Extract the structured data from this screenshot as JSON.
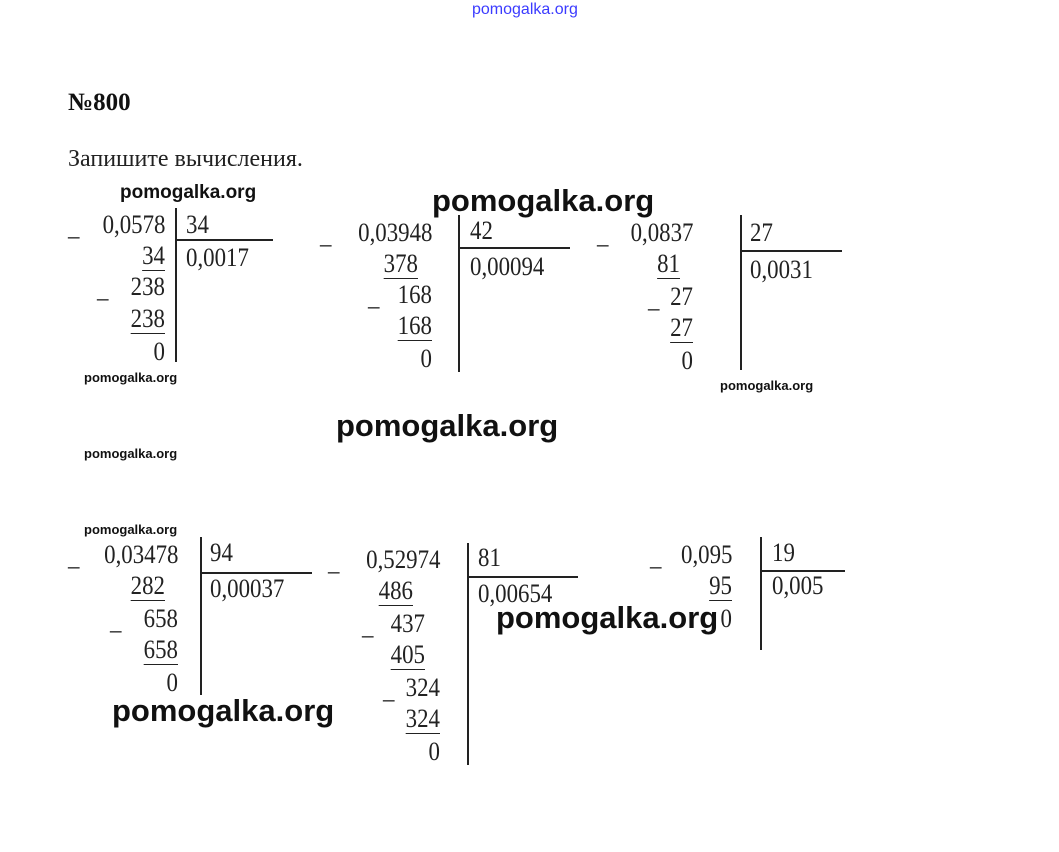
{
  "header_watermark": "pomogalka.org",
  "problem_number": "№800",
  "instruction": "Запишите вычисления.",
  "accent_color": "#3b3bff",
  "watermarks": [
    "pomogalka.org",
    "pomogalka.org",
    "pomogalka.org",
    "pomogalka.org",
    "pomogalka.org",
    "pomogalka.org",
    "pomogalka.org",
    "pomogalka.org",
    "pomogalka.org",
    "pomogalka.org"
  ],
  "divisions": [
    {
      "dividend": "0,0578",
      "divisor": "34",
      "quotient": "0,0017",
      "rows": [
        {
          "sign": "_",
          "text": "0,0578"
        },
        {
          "text": "34",
          "underlined": true
        },
        {
          "sign": "_",
          "text": "238"
        },
        {
          "text": "238",
          "underlined": true
        },
        {
          "text": "0"
        }
      ]
    },
    {
      "dividend": "0,03948",
      "divisor": "42",
      "quotient": "0,00094",
      "rows": [
        {
          "sign": "_",
          "text": "0,03948"
        },
        {
          "text": "378",
          "underlined": true
        },
        {
          "sign": "_",
          "text": "168"
        },
        {
          "text": "168",
          "underlined": true
        },
        {
          "text": "0"
        }
      ]
    },
    {
      "dividend": "0,0837",
      "divisor": "27",
      "quotient": "0,0031",
      "rows": [
        {
          "sign": "_",
          "text": "0,0837"
        },
        {
          "text": "81",
          "underlined": true
        },
        {
          "sign": "_",
          "text": "27"
        },
        {
          "text": "27",
          "underlined": true
        },
        {
          "text": "0"
        }
      ]
    },
    {
      "dividend": "0,03478",
      "divisor": "94",
      "quotient": "0,00037",
      "rows": [
        {
          "sign": "_",
          "text": "0,03478"
        },
        {
          "text": "282",
          "underlined": true
        },
        {
          "sign": "_",
          "text": "658"
        },
        {
          "text": "658",
          "underlined": true
        },
        {
          "text": "0"
        }
      ]
    },
    {
      "dividend": "0,52974",
      "divisor": "81",
      "quotient": "0,00654",
      "rows": [
        {
          "sign": "_",
          "text": "0,52974"
        },
        {
          "text": "486",
          "underlined": true
        },
        {
          "sign": "_",
          "text": "437"
        },
        {
          "text": "405",
          "underlined": true
        },
        {
          "sign": "_",
          "text": "324"
        },
        {
          "text": "324",
          "underlined": true
        },
        {
          "text": "0"
        }
      ]
    },
    {
      "dividend": "0,095",
      "divisor": "19",
      "quotient": "0,005",
      "rows": [
        {
          "sign": "_",
          "text": "0,095"
        },
        {
          "text": "95",
          "underlined": true
        },
        {
          "text": "0"
        }
      ]
    }
  ]
}
